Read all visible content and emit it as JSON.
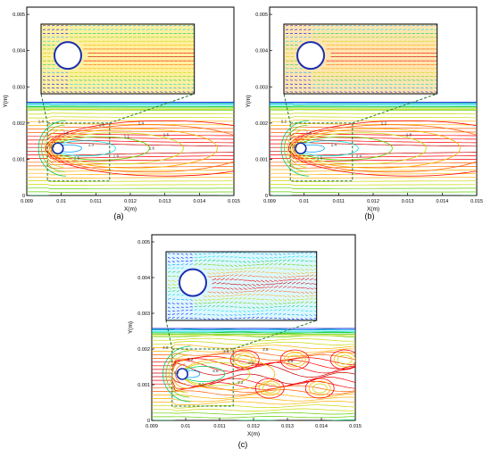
{
  "chart_data": [
    {
      "type": "contour",
      "panel_label": "(a)",
      "xlabel": "X(m)",
      "ylabel": "Y(m)",
      "xlim": [
        0.009,
        0.015
      ],
      "ylim": [
        0,
        0.0052
      ],
      "x_ticks": [
        "0.009",
        "0.01",
        "0.011",
        "0.012",
        "0.013",
        "0.014",
        "0.015"
      ],
      "y_ticks": [
        "0",
        "0.001",
        "0.002",
        "0.003",
        "0.004",
        "0.005"
      ],
      "cylinder": {
        "x": 0.0099,
        "y": 0.0013,
        "r": 0.00011
      },
      "wake_regime": "steady",
      "contour_labels": [
        "1.4",
        "1.6",
        "1.3",
        "1.9",
        "1.4",
        "1.6",
        "1.4",
        "2.5",
        "1.6",
        "1.1",
        "1.6"
      ],
      "inset_region": {
        "x": [
          0.0096,
          0.0114
        ],
        "y": [
          0.0004,
          0.002
        ]
      }
    },
    {
      "type": "contour",
      "panel_label": "(b)",
      "xlabel": "X(m)",
      "ylabel": "Y(m)",
      "xlim": [
        0.009,
        0.015
      ],
      "ylim": [
        0,
        0.0052
      ],
      "x_ticks": [
        "0.009",
        "0.01",
        "0.011",
        "0.012",
        "0.013",
        "0.014",
        "0.015"
      ],
      "y_ticks": [
        "0",
        "0.001",
        "0.002",
        "0.003",
        "0.004",
        "0.005"
      ],
      "cylinder": {
        "x": 0.0099,
        "y": 0.0013,
        "r": 0.00011
      },
      "wake_regime": "steady",
      "contour_labels": [
        "2.2",
        "1.8",
        "2.4",
        "2.4",
        "1.2",
        "1.8",
        "1.8",
        "1.6"
      ],
      "inset_region": {
        "x": [
          0.0096,
          0.0114
        ],
        "y": [
          0.0004,
          0.002
        ]
      }
    },
    {
      "type": "contour",
      "panel_label": "(c)",
      "xlabel": "X(m)",
      "ylabel": "Y(m)",
      "xlim": [
        0.009,
        0.015
      ],
      "ylim": [
        0,
        0.0052
      ],
      "x_ticks": [
        "0.009",
        "0.01",
        "0.011",
        "0.012",
        "0.013",
        "0.014",
        "0.015"
      ],
      "y_ticks": [
        "0",
        "0.001",
        "0.002",
        "0.003",
        "0.004",
        "0.005"
      ],
      "cylinder": {
        "x": 0.0099,
        "y": 0.0013,
        "r": 0.00011
      },
      "wake_regime": "vortex-shedding",
      "contour_labels": [
        "2.8",
        "2.2",
        "2.6",
        "2.2",
        "2.6",
        "2.6",
        "2.2",
        "3.2",
        "2.8",
        "2.6"
      ],
      "inset_region": {
        "x": [
          0.0096,
          0.0114
        ],
        "y": [
          0.0004,
          0.002
        ]
      }
    }
  ],
  "colors": {
    "contour_palette": [
      "#0000ff",
      "#00a0ff",
      "#00e0e0",
      "#00d060",
      "#60d000",
      "#c8d800",
      "#ffb000",
      "#ff6000",
      "#ff0000",
      "#c80000"
    ],
    "cylinder_outline": "#1a2fb0",
    "inset_guide": "#1a7a2a",
    "frame": "#000000"
  }
}
